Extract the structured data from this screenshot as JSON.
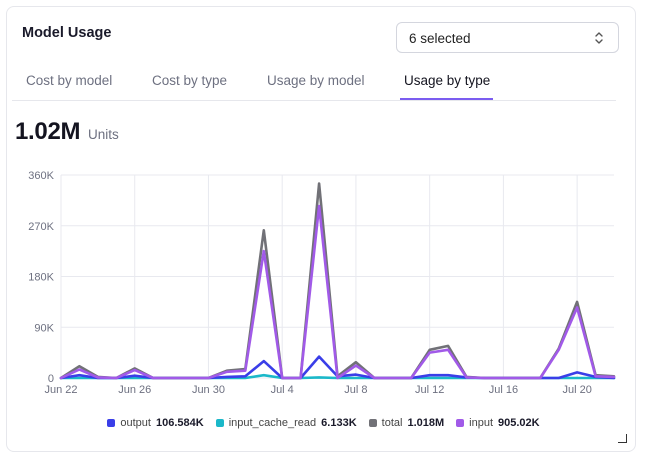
{
  "card": {
    "title": "Model Usage",
    "select_label": "6 selected",
    "select_icon": "chevron-up-down-icon"
  },
  "tabs": [
    {
      "label": "Cost by model",
      "active": false
    },
    {
      "label": "Cost by type",
      "active": false
    },
    {
      "label": "Usage by model",
      "active": false
    },
    {
      "label": "Usage by type",
      "active": true
    }
  ],
  "metric": {
    "value": "1.02M",
    "unit": "Units"
  },
  "chart_data": {
    "type": "line",
    "title": "",
    "xlabel": "",
    "ylabel": "",
    "ylim": [
      0,
      360000
    ],
    "yticks": [
      "360K",
      "270K",
      "180K",
      "90K",
      "0"
    ],
    "xticks": [
      "Jun 22",
      "Jun 26",
      "Jun 30",
      "Jul 4",
      "Jul 8",
      "Jul 12",
      "Jul 16",
      "Jul 20"
    ],
    "x": [
      "Jun 22",
      "Jun 23",
      "Jun 24",
      "Jun 25",
      "Jun 26",
      "Jun 27",
      "Jun 28",
      "Jun 29",
      "Jun 30",
      "Jul 1",
      "Jul 2",
      "Jul 3",
      "Jul 4",
      "Jul 5",
      "Jul 6",
      "Jul 7",
      "Jul 8",
      "Jul 9",
      "Jul 10",
      "Jul 11",
      "Jul 12",
      "Jul 13",
      "Jul 14",
      "Jul 15",
      "Jul 16",
      "Jul 17",
      "Jul 18",
      "Jul 19",
      "Jul 20",
      "Jul 21",
      "Jul 22"
    ],
    "grid": true,
    "legend_position": "bottom",
    "series": [
      {
        "name": "output",
        "color": "#3a3ee8",
        "legend_value": "106.584K",
        "values": [
          0,
          5000,
          0,
          0,
          4000,
          0,
          0,
          0,
          0,
          2000,
          3000,
          30000,
          0,
          0,
          38000,
          3000,
          6000,
          0,
          0,
          0,
          5000,
          5000,
          1000,
          0,
          0,
          0,
          0,
          0,
          10000,
          2000,
          0
        ]
      },
      {
        "name": "input_cache_read",
        "color": "#1bb8c9",
        "legend_value": "6.133K",
        "values": [
          0,
          0,
          0,
          0,
          0,
          0,
          0,
          0,
          0,
          0,
          0,
          5000,
          0,
          0,
          1000,
          0,
          0,
          0,
          0,
          0,
          0,
          0,
          0,
          0,
          0,
          0,
          0,
          0,
          0,
          0,
          0
        ]
      },
      {
        "name": "total",
        "color": "#717177",
        "legend_value": "1.018M",
        "values": [
          0,
          21000,
          2000,
          0,
          17000,
          0,
          0,
          0,
          0,
          13000,
          16000,
          262000,
          0,
          0,
          345000,
          3000,
          28000,
          0,
          0,
          0,
          50000,
          57000,
          2000,
          0,
          0,
          0,
          0,
          52000,
          135000,
          5000,
          3000
        ]
      },
      {
        "name": "input",
        "color": "#a15ae8",
        "legend_value": "905.02K",
        "values": [
          0,
          15000,
          1000,
          0,
          14000,
          0,
          0,
          0,
          0,
          11000,
          13000,
          225000,
          0,
          0,
          305000,
          0,
          22000,
          0,
          0,
          0,
          45000,
          50000,
          1000,
          0,
          0,
          0,
          0,
          50000,
          125000,
          3000,
          2000
        ]
      }
    ]
  }
}
